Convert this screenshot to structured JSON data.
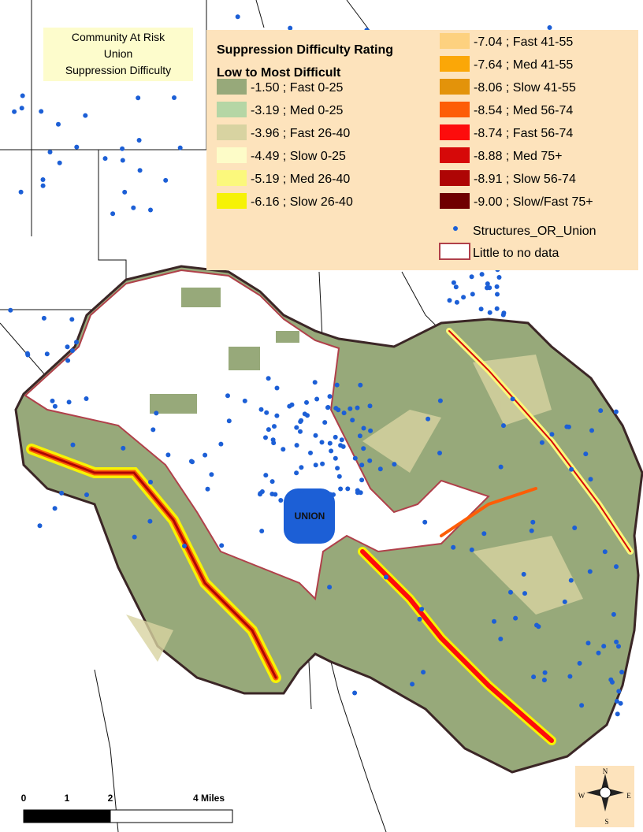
{
  "title_box": {
    "lines": [
      "Community At Risk",
      "Union",
      "Suppression Difficulty"
    ]
  },
  "legend": {
    "title": "Suppression Difficulty Rating",
    "subtitle": "Low to Most Difficult",
    "items": [
      {
        "label": "-1.50 ; Fast 0-25",
        "color": "#97a97a"
      },
      {
        "label": "-3.19 ; Med 0-25",
        "color": "#b5d6a5"
      },
      {
        "label": "-3.96 ; Fast 26-40",
        "color": "#d8d3a1"
      },
      {
        "label": "-4.49 ; Slow 0-25",
        "color": "#fdfcc8"
      },
      {
        "label": "-5.19 ; Med 26-40",
        "color": "#fbf87c"
      },
      {
        "label": "-6.16 ; Slow 26-40",
        "color": "#f6f206"
      },
      {
        "label": "-7.04 ; Fast 41-55",
        "color": "#fdd17f"
      },
      {
        "label": "-7.64 ; Med 41-55",
        "color": "#fba707"
      },
      {
        "label": "-8.06 ; Slow 41-55",
        "color": "#e3930a"
      },
      {
        "label": "-8.54 ; Med 56-74",
        "color": "#fd5d07"
      },
      {
        "label": "-8.74 ; Fast 56-74",
        "color": "#fd0c0c"
      },
      {
        "label": "-8.88 ; Med 75+",
        "color": "#d60909"
      },
      {
        "label": "-8.91 ; Slow 56-74",
        "color": "#ae0505"
      },
      {
        "label": "-9.00 ; Slow/Fast 75+",
        "color": "#6f0000"
      }
    ],
    "structures": {
      "label": "Structures_OR_Union",
      "color": "#1c5fd6"
    },
    "no_data": {
      "label": "Little to no data",
      "color": "#b0404a"
    }
  },
  "town_label": "UNION",
  "scale_bar": {
    "labels": [
      "0",
      "1",
      "2",
      "4 Miles"
    ]
  },
  "compass": {
    "n": "N",
    "e": "E",
    "s": "S",
    "w": "W"
  }
}
